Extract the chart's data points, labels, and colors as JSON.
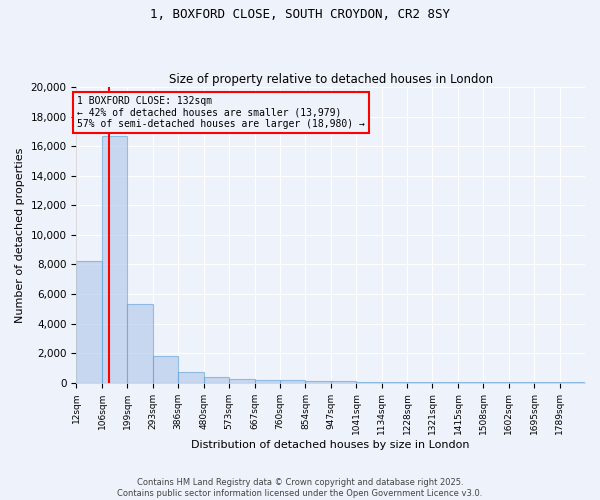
{
  "title_line1": "1, BOXFORD CLOSE, SOUTH CROYDON, CR2 8SY",
  "title_line2": "Size of property relative to detached houses in London",
  "xlabel": "Distribution of detached houses by size in London",
  "ylabel": "Number of detached properties",
  "bar_color": "#aec6e8",
  "bar_edge_color": "#5a9fd4",
  "bar_alpha": 0.6,
  "annotation_text": "1 BOXFORD CLOSE: 132sqm\n← 42% of detached houses are smaller (13,979)\n57% of semi-detached houses are larger (18,980) →",
  "annotation_box_color": "red",
  "vline_x": 132,
  "vline_color": "red",
  "property_sqm": 132,
  "bins": [
    12,
    106,
    199,
    293,
    386,
    480,
    573,
    667,
    760,
    854,
    947,
    1041,
    1134,
    1228,
    1321,
    1415,
    1508,
    1602,
    1695,
    1789,
    1882
  ],
  "counts": [
    8200,
    16700,
    5300,
    1800,
    700,
    350,
    250,
    200,
    150,
    100,
    80,
    70,
    60,
    50,
    40,
    35,
    30,
    25,
    20,
    15
  ],
  "ylim": [
    0,
    20000
  ],
  "yticks": [
    0,
    2000,
    4000,
    6000,
    8000,
    10000,
    12000,
    14000,
    16000,
    18000,
    20000
  ],
  "background_color": "#eef2fa",
  "grid_color": "#ffffff",
  "footer_line1": "Contains HM Land Registry data © Crown copyright and database right 2025.",
  "footer_line2": "Contains public sector information licensed under the Open Government Licence v3.0."
}
